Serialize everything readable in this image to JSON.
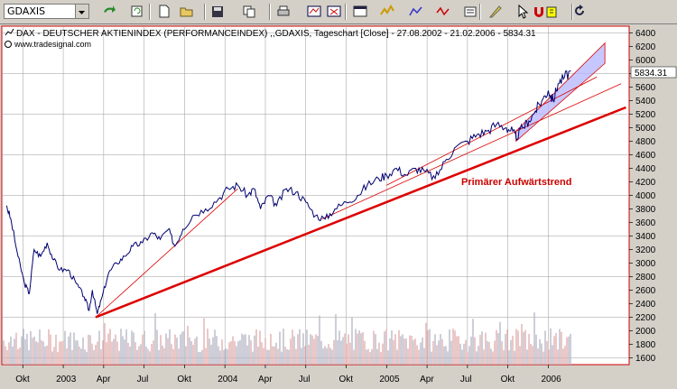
{
  "toolbar": {
    "symbol": "GDAXIS",
    "icons": [
      "undo-arrow-icon",
      "refresh-icon",
      "new-document-icon",
      "open-folder-icon",
      "save-disk-icon",
      "copy-icon",
      "print-icon",
      "chart-layout-icon",
      "close-chart-icon",
      "window-icon",
      "indicator-icon",
      "drawing-icon",
      "zigzag-icon",
      "properties-icon",
      "pen-icon",
      "cursor-icon",
      "magnet-icon",
      "export-icon",
      "reload-icon"
    ]
  },
  "chart": {
    "header": "DAX - DEUTSCHER AKTIENINDEX (PERFORMANCEINDEX) ,,GDAXIS, Tageschart [Close] - 27.08.2002 - 21.02.2006 - 5834.31",
    "source": "www.tradesignal.com",
    "last_value": "5834.31",
    "annotation": "Primärer Aufwärtstrend",
    "colors": {
      "price": "#00006e",
      "trend": "#dd0000",
      "channel": "#b4b4ff",
      "frame": "#cc0000",
      "bg": "#ffffff",
      "grid": "#888888"
    }
  },
  "chart_data": {
    "type": "line",
    "ylim": [
      1500,
      6500
    ],
    "yticks": [
      1600,
      1800,
      2000,
      2200,
      2400,
      2600,
      2800,
      3000,
      3200,
      3400,
      3600,
      3800,
      4000,
      4200,
      4400,
      4600,
      4800,
      5000,
      5200,
      5400,
      5600,
      5800,
      6000,
      6200,
      6400
    ],
    "xticks": [
      "Okt",
      "2003",
      "Apr",
      "Jul",
      "Okt",
      "2004",
      "Apr",
      "Jul",
      "Okt",
      "2005",
      "Apr",
      "Jul",
      "Okt",
      "2006"
    ],
    "xtick_time": [
      2002.75,
      2003.0,
      2003.25,
      2003.5,
      2003.75,
      2004.0,
      2004.25,
      2004.5,
      2004.75,
      2005.0,
      2005.25,
      2005.5,
      2005.75,
      2006.0
    ],
    "series": [
      {
        "points": [
          [
            2002.65,
            3850
          ],
          [
            2002.68,
            3600
          ],
          [
            2002.72,
            3100
          ],
          [
            2002.76,
            2700
          ],
          [
            2002.79,
            2550
          ],
          [
            2002.82,
            3200
          ],
          [
            2002.86,
            3100
          ],
          [
            2002.9,
            3300
          ],
          [
            2002.94,
            3050
          ],
          [
            2002.98,
            2900
          ],
          [
            2003.03,
            2900
          ],
          [
            2003.08,
            2700
          ],
          [
            2003.13,
            2500
          ],
          [
            2003.16,
            2300
          ],
          [
            2003.18,
            2600
          ],
          [
            2003.21,
            2250
          ],
          [
            2003.24,
            2500
          ],
          [
            2003.28,
            2850
          ],
          [
            2003.33,
            3000
          ],
          [
            2003.38,
            3100
          ],
          [
            2003.43,
            3250
          ],
          [
            2003.49,
            3300
          ],
          [
            2003.55,
            3450
          ],
          [
            2003.6,
            3350
          ],
          [
            2003.65,
            3500
          ],
          [
            2003.69,
            3250
          ],
          [
            2003.74,
            3500
          ],
          [
            2003.8,
            3700
          ],
          [
            2003.88,
            3800
          ],
          [
            2003.96,
            3950
          ],
          [
            2004.02,
            4100
          ],
          [
            2004.08,
            4150
          ],
          [
            2004.14,
            4000
          ],
          [
            2004.18,
            4100
          ],
          [
            2004.22,
            3800
          ],
          [
            2004.27,
            4000
          ],
          [
            2004.32,
            3850
          ],
          [
            2004.38,
            4100
          ],
          [
            2004.44,
            4050
          ],
          [
            2004.5,
            3900
          ],
          [
            2004.56,
            3700
          ],
          [
            2004.62,
            3650
          ],
          [
            2004.68,
            3800
          ],
          [
            2004.75,
            3900
          ],
          [
            2004.82,
            4000
          ],
          [
            2004.88,
            4150
          ],
          [
            2004.95,
            4250
          ],
          [
            2005.0,
            4300
          ],
          [
            2005.06,
            4400
          ],
          [
            2005.12,
            4300
          ],
          [
            2005.18,
            4400
          ],
          [
            2005.24,
            4350
          ],
          [
            2005.3,
            4250
          ],
          [
            2005.36,
            4500
          ],
          [
            2005.42,
            4700
          ],
          [
            2005.5,
            4800
          ],
          [
            2005.56,
            4900
          ],
          [
            2005.62,
            4950
          ],
          [
            2005.68,
            5050
          ],
          [
            2005.74,
            5000
          ],
          [
            2005.78,
            4950
          ],
          [
            2005.8,
            4850
          ],
          [
            2005.84,
            5000
          ],
          [
            2005.88,
            5100
          ],
          [
            2005.92,
            5250
          ],
          [
            2005.96,
            5400
          ],
          [
            2006.0,
            5550
          ],
          [
            2006.03,
            5400
          ],
          [
            2006.06,
            5650
          ],
          [
            2006.1,
            5750
          ],
          [
            2006.14,
            5834.31
          ]
        ]
      }
    ],
    "volume_seed": 7
  }
}
